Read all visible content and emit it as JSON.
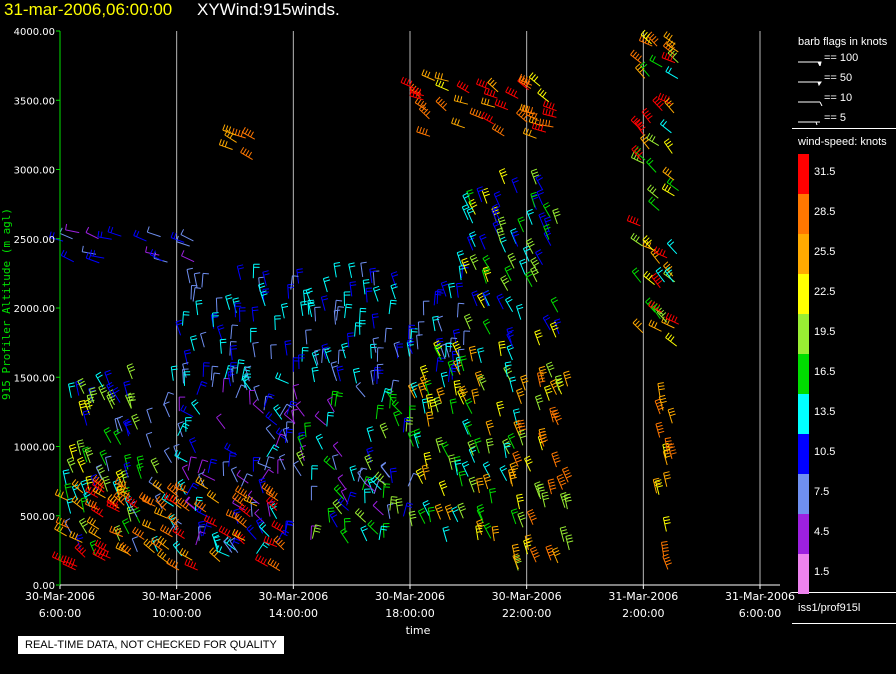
{
  "header": {
    "time": "31-mar-2006,06:00:00",
    "title": "XYWind:915winds."
  },
  "chart_data": {
    "type": "scatter",
    "title": "XYWind:915winds.",
    "xlabel": "time",
    "ylabel": "915 Profiler Altitude (m agl)",
    "ylim": [
      0,
      4000
    ],
    "y_ticks": [
      "0.00",
      "500.00",
      "1000.00",
      "1500.00",
      "2000.00",
      "2500.00",
      "3000.00",
      "3500.00",
      "4000.00"
    ],
    "x_ticks": [
      {
        "l1": "30-Mar-2006",
        "l2": "6:00:00"
      },
      {
        "l1": "30-Mar-2006",
        "l2": "10:00:00"
      },
      {
        "l1": "30-Mar-2006",
        "l2": "14:00:00"
      },
      {
        "l1": "30-Mar-2006",
        "l2": "18:00:00"
      },
      {
        "l1": "30-Mar-2006",
        "l2": "22:00:00"
      },
      {
        "l1": "31-Mar-2006",
        "l2": "2:00:00"
      },
      {
        "l1": "31-Mar-2006",
        "l2": "6:00:00"
      }
    ],
    "grid": "vertical",
    "marks": "wind barbs colored by wind speed (knots)",
    "speed_colors": [
      "#ee82ee",
      "#9d20e0",
      "#6f8ff0",
      "#0000ff",
      "#00ffff",
      "#00dd00",
      "#99ee33",
      "#ffff00",
      "#ffaa00",
      "#ff7700",
      "#ff0000"
    ]
  },
  "legend": {
    "barb_title": "barb flags in knots",
    "barb_items": [
      "== 100",
      "== 50",
      "== 10",
      "== 5"
    ],
    "speed_title": "wind-speed: knots",
    "speed_levels": [
      {
        "label": "31.5",
        "color": "#ff0000"
      },
      {
        "label": "28.5",
        "color": "#ff7700"
      },
      {
        "label": "25.5",
        "color": "#ffaa00"
      },
      {
        "label": "22.5",
        "color": "#ffff00"
      },
      {
        "label": "19.5",
        "color": "#99ee33"
      },
      {
        "label": "16.5",
        "color": "#00dd00"
      },
      {
        "label": "13.5",
        "color": "#00ffff"
      },
      {
        "label": "10.5",
        "color": "#0000ff"
      },
      {
        "label": "7.5",
        "color": "#6f8ff0"
      },
      {
        "label": "4.5",
        "color": "#9d20e0"
      },
      {
        "label": "1.5",
        "color": "#ee82ee"
      }
    ],
    "source": "iss1/prof915l"
  },
  "notice": "REAL-TIME DATA, NOT CHECKED FOR QUALITY"
}
